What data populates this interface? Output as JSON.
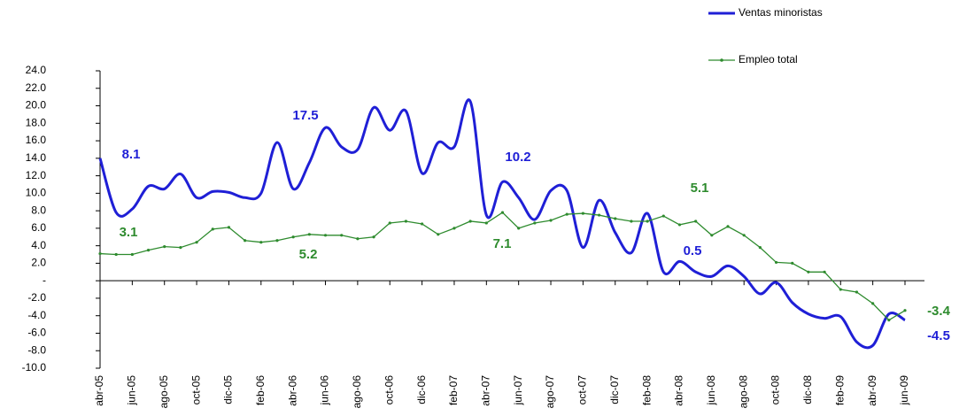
{
  "chart_data": {
    "type": "line",
    "categories": [
      "abr-05",
      null,
      "jun-05",
      null,
      "ago-05",
      null,
      "oct-05",
      null,
      "dic-05",
      null,
      "feb-06",
      null,
      "abr-06",
      null,
      "jun-06",
      null,
      "ago-06",
      null,
      "oct-06",
      null,
      "dic-06",
      null,
      "feb-07",
      null,
      "abr-07",
      null,
      "jun-07",
      null,
      "ago-07",
      null,
      "oct-07",
      null,
      "dic-07",
      null,
      "feb-08",
      null,
      "abr-08",
      null,
      "jun-08",
      null,
      "ago-08",
      null,
      "oct-08",
      null,
      "dic-08",
      null,
      "feb-09",
      null,
      "abr-09",
      null,
      "jun-09"
    ],
    "series": [
      {
        "name": "Ventas minoristas",
        "color": "#1f1fd6",
        "values": [
          14.0,
          7.8,
          8.2,
          10.8,
          10.5,
          12.2,
          9.5,
          10.2,
          10.1,
          9.5,
          10.0,
          15.8,
          10.5,
          13.5,
          17.5,
          15.3,
          15.0,
          19.8,
          17.2,
          19.4,
          12.3,
          15.8,
          15.3,
          20.5,
          7.5,
          11.3,
          9.5,
          7.0,
          10.3,
          10.3,
          3.8,
          9.2,
          5.5,
          3.2,
          7.7,
          1.0,
          2.2,
          1.0,
          0.5,
          1.7,
          0.5,
          -1.5,
          -0.2,
          -2.5,
          -3.8,
          -4.3,
          -4.1,
          -7.0,
          -7.4,
          -3.8,
          -4.5
        ]
      },
      {
        "name": "Empleo total",
        "color": "#2e8b2e",
        "values": [
          3.1,
          3.0,
          3.0,
          3.5,
          3.9,
          3.8,
          4.4,
          5.9,
          6.1,
          4.6,
          4.4,
          4.6,
          5.0,
          5.3,
          5.2,
          5.2,
          4.8,
          5.0,
          6.6,
          6.8,
          6.5,
          5.3,
          6.0,
          6.8,
          6.6,
          7.8,
          6.0,
          6.6,
          6.9,
          7.6,
          7.7,
          7.5,
          7.1,
          6.8,
          6.8,
          7.4,
          6.4,
          6.8,
          5.2,
          6.2,
          5.2,
          3.8,
          2.1,
          2.0,
          1.0,
          1.0,
          -1.0,
          -1.3,
          -2.6,
          -4.5,
          -3.4
        ]
      }
    ],
    "ylim": [
      -10,
      24
    ],
    "yticks": [
      {
        "value": -10,
        "label": "-10.0"
      },
      {
        "value": -8,
        "label": "-8.0"
      },
      {
        "value": -6,
        "label": "-6.0"
      },
      {
        "value": -4,
        "label": "-4.0"
      },
      {
        "value": -2,
        "label": "-2.0"
      },
      {
        "value": 0,
        "label": "-"
      },
      {
        "value": 2,
        "label": "2.0"
      },
      {
        "value": 4,
        "label": "4.0"
      },
      {
        "value": 6,
        "label": "6.0"
      },
      {
        "value": 8,
        "label": "8.0"
      },
      {
        "value": 10,
        "label": "10.0"
      },
      {
        "value": 12,
        "label": "12.0"
      },
      {
        "value": 14,
        "label": "14.0"
      },
      {
        "value": 16,
        "label": "16.0"
      },
      {
        "value": 18,
        "label": "18.0"
      },
      {
        "value": 20,
        "label": "20.0"
      },
      {
        "value": 22,
        "label": "22.0"
      },
      {
        "value": 24,
        "label": "24.0"
      }
    ],
    "annotations": [
      {
        "text": "8.1",
        "series": 0
      },
      {
        "text": "17.5",
        "series": 0
      },
      {
        "text": "10.2",
        "series": 0
      },
      {
        "text": "0.5",
        "series": 0
      },
      {
        "text": "-4.5",
        "series": 0
      },
      {
        "text": "3.1",
        "series": 1
      },
      {
        "text": "5.2",
        "series": 1
      },
      {
        "text": "7.1",
        "series": 1
      },
      {
        "text": "5.1",
        "series": 1
      },
      {
        "text": "-3.4",
        "series": 1
      }
    ],
    "grid": false
  }
}
